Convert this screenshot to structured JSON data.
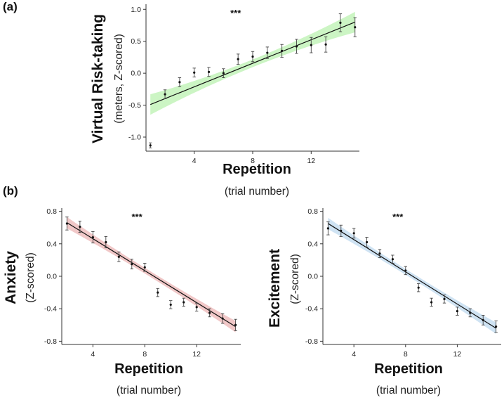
{
  "figure": {
    "panel_a": "(a)",
    "panel_b": "(b)"
  },
  "chart_data": [
    {
      "id": "a",
      "type": "line",
      "title": "",
      "annotation": "***",
      "ylabel": "Virtual Risk-taking",
      "ylabel_sub": "(meters, Z-scored)",
      "xlabel": "Repetition",
      "xlabel_sub": "(trial number)",
      "xlim": [
        0.7,
        15.3
      ],
      "ylim": [
        -1.22,
        1.08
      ],
      "xticks": [
        4,
        8,
        12
      ],
      "yticks": [
        -1.0,
        -0.5,
        0.0,
        0.5,
        1.0
      ],
      "ytick_labels": [
        "-1.0",
        "-0.5",
        "0.0",
        "0.5",
        "1.0"
      ],
      "band_color": "#ccf5c4",
      "x": [
        1,
        2,
        3,
        4,
        5,
        6,
        7,
        8,
        9,
        10,
        11,
        12,
        13,
        14,
        15
      ],
      "y": [
        -1.13,
        -0.33,
        -0.14,
        0.01,
        0.02,
        0.0,
        0.22,
        0.26,
        0.32,
        0.35,
        0.42,
        0.44,
        0.45,
        0.79,
        0.72
      ],
      "err": [
        0.04,
        0.07,
        0.07,
        0.07,
        0.07,
        0.07,
        0.08,
        0.08,
        0.09,
        0.1,
        0.11,
        0.12,
        0.12,
        0.14,
        0.15
      ],
      "fit": {
        "x0": 1,
        "y0": -0.49,
        "x1": 15,
        "y1": 0.8,
        "ci_start": 0.16,
        "ci_mid": 0.06,
        "ci_end": 0.16
      }
    },
    {
      "id": "b1",
      "type": "line",
      "title": "",
      "annotation": "***",
      "ylabel": "Anxiety",
      "ylabel_sub": "(Z-scored)",
      "xlabel": "Repetition",
      "xlabel_sub": "(trial number)",
      "xlim": [
        1.6,
        15.4
      ],
      "ylim": [
        -0.84,
        0.84
      ],
      "xticks": [
        4,
        8,
        12
      ],
      "yticks": [
        -0.8,
        -0.4,
        0.0,
        0.4,
        0.8
      ],
      "ytick_labels": [
        "-0.8",
        "-0.4",
        "0.0",
        "0.4",
        "0.8"
      ],
      "band_color": "#f1c8c8",
      "x": [
        2,
        3,
        4,
        5,
        6,
        7,
        8,
        9,
        10,
        11,
        12,
        13,
        14,
        15
      ],
      "y": [
        0.65,
        0.61,
        0.48,
        0.42,
        0.24,
        0.15,
        0.11,
        -0.2,
        -0.35,
        -0.32,
        -0.38,
        -0.45,
        -0.52,
        -0.6
      ],
      "err": [
        0.08,
        0.07,
        0.07,
        0.07,
        0.06,
        0.06,
        0.05,
        0.05,
        0.05,
        0.05,
        0.05,
        0.05,
        0.06,
        0.07
      ],
      "fit": {
        "x0": 2,
        "y0": 0.66,
        "x1": 15,
        "y1": -0.62,
        "ci_start": 0.07,
        "ci_mid": 0.035,
        "ci_end": 0.07
      }
    },
    {
      "id": "b2",
      "type": "line",
      "title": "",
      "annotation": "***",
      "ylabel": "Excitement",
      "ylabel_sub": "(Z-scored)",
      "xlabel": "Repetition",
      "xlabel_sub": "(trial number)",
      "xlim": [
        1.6,
        15.4
      ],
      "ylim": [
        -0.84,
        0.84
      ],
      "xticks": [
        4,
        8,
        12
      ],
      "yticks": [
        -0.8,
        -0.4,
        0.0,
        0.4,
        0.8
      ],
      "ytick_labels": [
        "-0.8",
        "-0.4",
        "0.0",
        "0.4",
        "0.8"
      ],
      "band_color": "#cfe3f3",
      "x": [
        2,
        3,
        4,
        5,
        6,
        7,
        8,
        9,
        10,
        11,
        12,
        13,
        14,
        15
      ],
      "y": [
        0.59,
        0.56,
        0.53,
        0.42,
        0.28,
        0.21,
        0.07,
        -0.14,
        -0.32,
        -0.28,
        -0.43,
        -0.45,
        -0.54,
        -0.62
      ],
      "err": [
        0.08,
        0.07,
        0.06,
        0.06,
        0.05,
        0.05,
        0.05,
        0.05,
        0.05,
        0.05,
        0.05,
        0.05,
        0.06,
        0.07
      ],
      "fit": {
        "x0": 2,
        "y0": 0.65,
        "x1": 15,
        "y1": -0.64,
        "ci_start": 0.07,
        "ci_mid": 0.035,
        "ci_end": 0.07
      }
    }
  ]
}
